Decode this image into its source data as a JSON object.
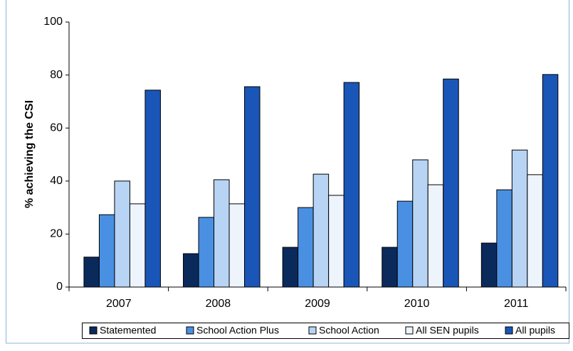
{
  "chart_data": {
    "type": "bar",
    "y_label": "% achieving the CSI",
    "categories": [
      "2007",
      "2008",
      "2009",
      "2010",
      "2011"
    ],
    "series": [
      {
        "name": "Statemented",
        "color": "#0b2a5c",
        "values": [
          11.3,
          12.6,
          15,
          15,
          16.6
        ]
      },
      {
        "name": "School Action Plus",
        "color": "#4a90e2",
        "values": [
          27.3,
          26.3,
          30,
          32.4,
          36.7
        ]
      },
      {
        "name": "School Action",
        "color": "#b8d4f5",
        "values": [
          40,
          40.5,
          42.6,
          48,
          51.7
        ]
      },
      {
        "name": "All SEN pupils",
        "color": "#eef4fc",
        "values": [
          31.4,
          31.4,
          34.6,
          38.6,
          42.4
        ]
      },
      {
        "name": "All pupils",
        "color": "#1a56b8",
        "values": [
          74.3,
          75.6,
          77.2,
          78.5,
          80.2
        ]
      }
    ],
    "ylim": [
      0,
      100
    ],
    "yticks": [
      0,
      20,
      40,
      60,
      80,
      100
    ],
    "grid": false,
    "legend": "bottom"
  }
}
